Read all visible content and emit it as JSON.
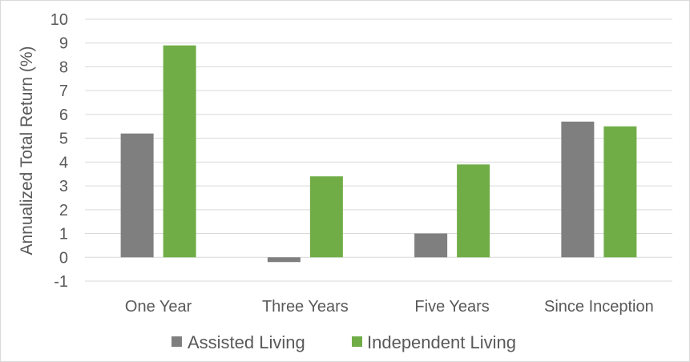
{
  "chart_data": {
    "type": "bar",
    "categories": [
      "One Year",
      "Three Years",
      "Five Years",
      "Since Inception"
    ],
    "series": [
      {
        "name": "Assisted Living",
        "color": "#7f7f7f",
        "values": [
          5.2,
          -0.2,
          1.0,
          5.7
        ]
      },
      {
        "name": "Independent Living",
        "color": "#70ad47",
        "values": [
          8.9,
          3.4,
          3.9,
          5.5
        ]
      }
    ],
    "ylabel": "Annualized Total Return (%)",
    "xlabel": "",
    "ylim": [
      -1,
      10
    ],
    "yticks": [
      "-1",
      "0",
      "1",
      "2",
      "3",
      "4",
      "5",
      "6",
      "7",
      "8",
      "9",
      "10"
    ],
    "grid": true,
    "legend_position": "bottom"
  }
}
